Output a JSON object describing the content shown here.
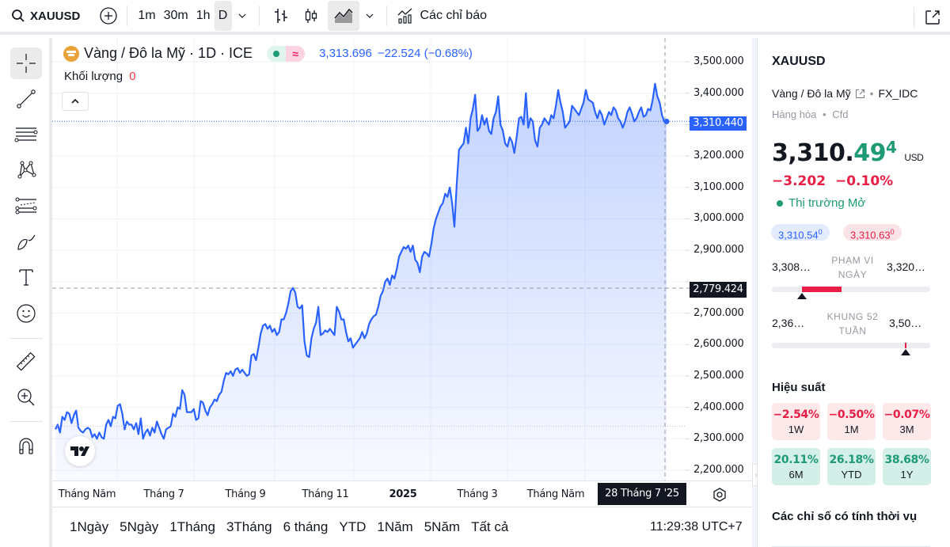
{
  "toolbar": {
    "symbol": "XAUUSD",
    "intervals": [
      "1m",
      "30m",
      "1h",
      "D"
    ],
    "active_interval": "D",
    "indicators_label": "Các chỉ báo"
  },
  "legend": {
    "title": "Vàng / Đô la Mỹ · 1D · ICE",
    "price": "3,313.696",
    "change": "−22.524 (−0.68%)",
    "volume_label": "Khối lượng",
    "volume_value": "0",
    "market_status_icon": "≈"
  },
  "price_axis": {
    "ticks": [
      "3,500.000",
      "3,400.000",
      "3,200.000",
      "3,100.000",
      "3,000.000",
      "2,900.000",
      "2,700.000",
      "2,600.000",
      "2,500.000",
      "2,400.000",
      "2,300.000",
      "2,200.000"
    ],
    "last_price_label": "3,310.440",
    "crosshair_price_label": "2,779.424"
  },
  "time_axis": {
    "labels": [
      "Tháng Năm",
      "Tháng 7",
      "Tháng 9",
      "Tháng 11",
      "2025",
      "Tháng 3",
      "Tháng Năm"
    ],
    "crosshair_date": "28 Tháng 7 '25"
  },
  "range_bar": {
    "ranges": [
      "1Ngày",
      "5Ngày",
      "1Tháng",
      "3Tháng",
      "6 tháng",
      "YTD",
      "1Năm",
      "5Năm",
      "Tất cả"
    ],
    "clock": "11:29:38 UTC+7"
  },
  "right_panel": {
    "symbol": "XAUUSD",
    "name": "Vàng / Đô la Mỹ",
    "exchange": "FX_IDC",
    "category": "Hàng hóa",
    "type": "Cfd",
    "price_main": "3,310.",
    "price_decimals": "49",
    "price_sup": "4",
    "currency": "USD",
    "change_abs": "−3.202",
    "change_pct": "−0.10%",
    "market_status": "Thị trường Mở",
    "bid": "3,310.54",
    "bid_sup": "0",
    "ask": "3,310.63",
    "ask_sup": "0",
    "day_range": {
      "label1": "PHẠM VI",
      "label2": "NGÀY",
      "low": "3,308…",
      "high": "3,320…"
    },
    "week52_range": {
      "label1": "KHUNG 52",
      "label2": "TUẦN",
      "low": "2,36…",
      "high": "3,50…"
    },
    "performance_title": "Hiệu suất",
    "performance": [
      {
        "value": "−2.54%",
        "period": "1W",
        "sign": "neg"
      },
      {
        "value": "−0.50%",
        "period": "1M",
        "sign": "neg"
      },
      {
        "value": "−0.07%",
        "period": "3M",
        "sign": "neg"
      },
      {
        "value": "20.11%",
        "period": "6M",
        "sign": "pos"
      },
      {
        "value": "26.18%",
        "period": "YTD",
        "sign": "pos"
      },
      {
        "value": "38.68%",
        "period": "1Y",
        "sign": "pos"
      }
    ],
    "seasonals_title": "Các chỉ số có tính thời vụ"
  },
  "colors": {
    "line": "#2962ff",
    "negative": "#e91e46",
    "positive": "#1e9a74",
    "last_price_bg": "#2962ff"
  },
  "chart_data": {
    "type": "area",
    "title": "Vàng / Đô la Mỹ · 1D · ICE",
    "ylim": [
      2200,
      3500
    ],
    "x_tick_labels": [
      "Tháng Năm",
      "Tháng 7",
      "Tháng 9",
      "Tháng 11",
      "2025",
      "Tháng 3",
      "Tháng Năm"
    ],
    "series": [
      {
        "name": "XAUUSD",
        "values": [
          2330,
          2345,
          2320,
          2370,
          2360,
          2385,
          2380,
          2350,
          2375,
          2390,
          2335,
          2325,
          2320,
          2330,
          2335,
          2330,
          2305,
          2315,
          2300,
          2320,
          2305,
          2300,
          2345,
          2360,
          2340,
          2370,
          2365,
          2405,
          2410,
          2380,
          2330,
          2355,
          2345,
          2345,
          2330,
          2350,
          2315,
          2365,
          2300,
          2320,
          2330,
          2310,
          2335,
          2320,
          2355,
          2335,
          2315,
          2300,
          2330,
          2335,
          2340,
          2380,
          2370,
          2400,
          2395,
          2455,
          2440,
          2385,
          2385,
          2385,
          2395,
          2360,
          2365,
          2420,
          2415,
          2390,
          2375,
          2400,
          2410,
          2425,
          2420,
          2440,
          2450,
          2485,
          2510,
          2505,
          2515,
          2500,
          2520,
          2525,
          2510,
          2520,
          2510,
          2500,
          2505,
          2565,
          2570,
          2550,
          2590,
          2635,
          2660,
          2665,
          2650,
          2660,
          2640,
          2650,
          2630,
          2640,
          2680,
          2680,
          2700,
          2730,
          2770,
          2780,
          2765,
          2720,
          2715,
          2725,
          2610,
          2565,
          2560,
          2620,
          2650,
          2670,
          2720,
          2630,
          2635,
          2645,
          2640,
          2650,
          2640,
          2630,
          2720,
          2705,
          2680,
          2680,
          2640,
          2610,
          2620,
          2590,
          2600,
          2610,
          2620,
          2640,
          2620,
          2635,
          2665,
          2680,
          2690,
          2695,
          2720,
          2755,
          2770,
          2800,
          2810,
          2790,
          2820,
          2810,
          2840,
          2880,
          2895,
          2910,
          2905,
          2915,
          2895,
          2915,
          2870,
          2860,
          2830,
          2880,
          2895,
          2890,
          2880,
          2920,
          2970,
          3000,
          3020,
          3040,
          3050,
          3080,
          3070,
          3100,
          3050,
          2975,
          3110,
          3220,
          3230,
          3240,
          3290,
          3240,
          3320,
          3350,
          3395,
          3280,
          3290,
          3330,
          3300,
          3320,
          3280,
          3270,
          3320,
          3340,
          3390,
          3300,
          3280,
          3240,
          3230,
          3260,
          3245,
          3210,
          3260,
          3320,
          3325,
          3300,
          3400,
          3290,
          3320,
          3310,
          3250,
          3230,
          3290,
          3300,
          3320,
          3310,
          3300,
          3330,
          3320,
          3360,
          3410,
          3370,
          3340,
          3290,
          3300,
          3310,
          3360,
          3350,
          3340,
          3330,
          3350,
          3370,
          3410,
          3380,
          3375,
          3370,
          3340,
          3320,
          3345,
          3330,
          3300,
          3320,
          3340,
          3330,
          3355,
          3345,
          3320,
          3310,
          3290,
          3310,
          3340,
          3355,
          3335,
          3310,
          3320,
          3340,
          3355,
          3325,
          3330,
          3350,
          3345,
          3380,
          3430,
          3390,
          3370,
          3330,
          3310,
          3310
        ]
      }
    ],
    "last_value": 3310.44,
    "crosshair_value": 2779.424,
    "crosshair_date": "28 Tháng 7 '25",
    "grid": true
  }
}
